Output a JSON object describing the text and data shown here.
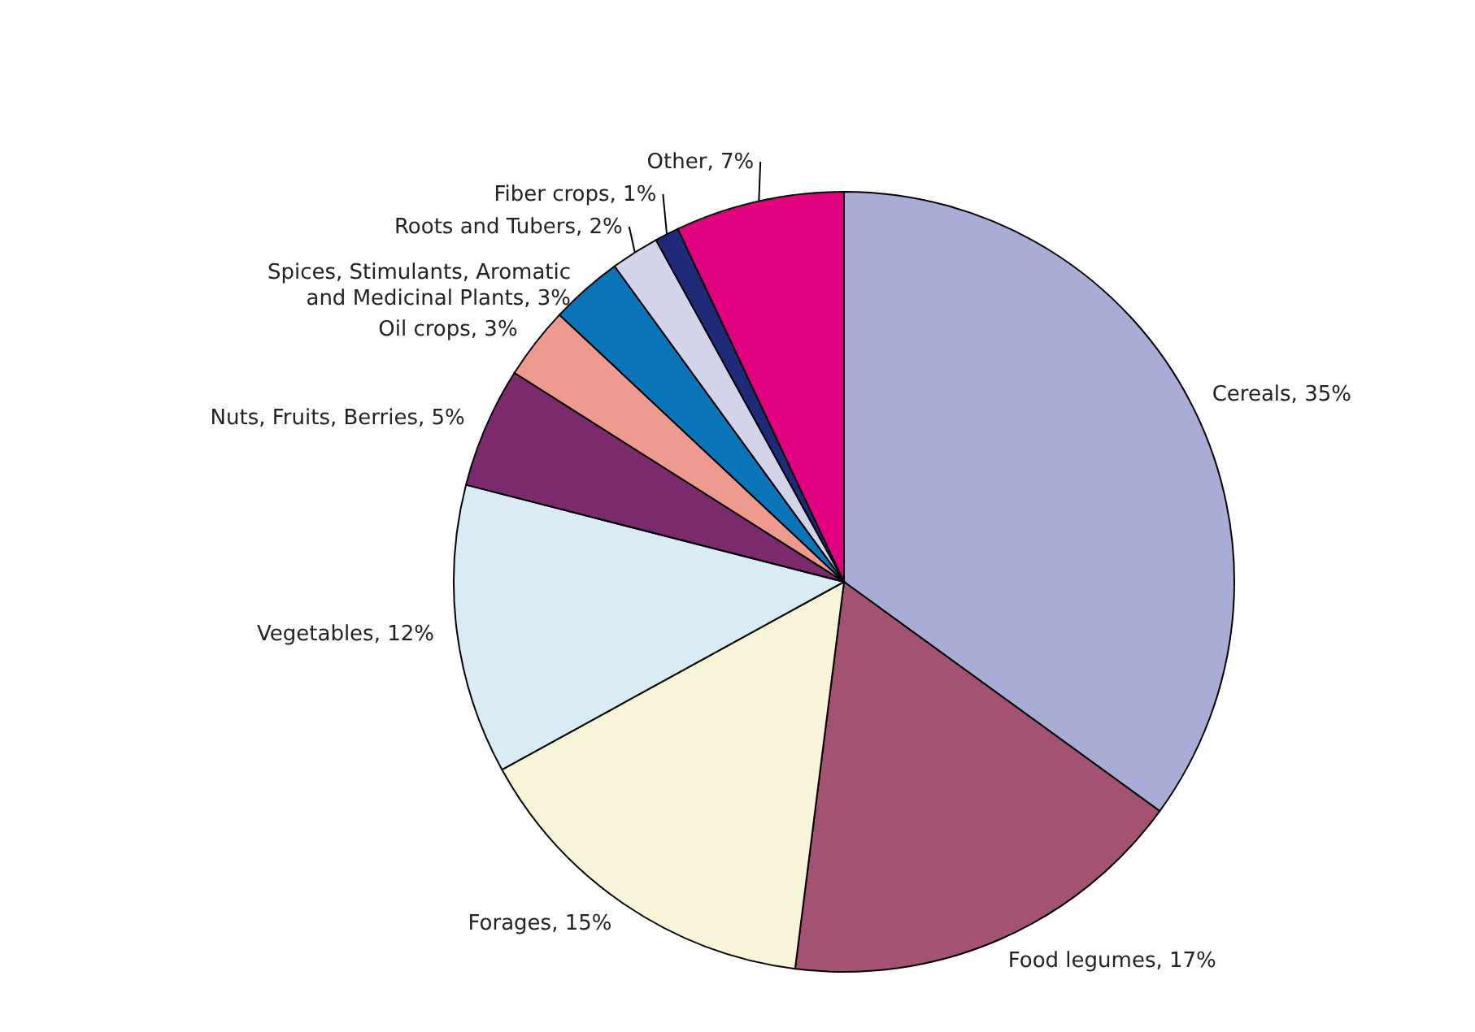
{
  "chart_data": {
    "type": "pie",
    "categories": [
      "Cereals",
      "Food legumes",
      "Forages",
      "Vegetables",
      "Nuts, Fruits, Berries",
      "Oil crops",
      "Spices, Stimulants, Aromatic and Medicinal Plants",
      "Roots and Tubers",
      "Fiber crops",
      "Other"
    ],
    "values": [
      35,
      17,
      15,
      12,
      5,
      3,
      3,
      2,
      1,
      7
    ],
    "value_labels": [
      "35%",
      "17%",
      "15%",
      "12%",
      "5%",
      "3%",
      "3%",
      "2%",
      "1%",
      "7%"
    ],
    "colors": [
      "#a9acd6",
      "#a35274",
      "#f7f4d7",
      "#d9ecf5",
      "#7b2a6e",
      "#ee9a8e",
      "#0a75b8",
      "#d3d4ea",
      "#1f2a78",
      "#e1007e"
    ]
  }
}
